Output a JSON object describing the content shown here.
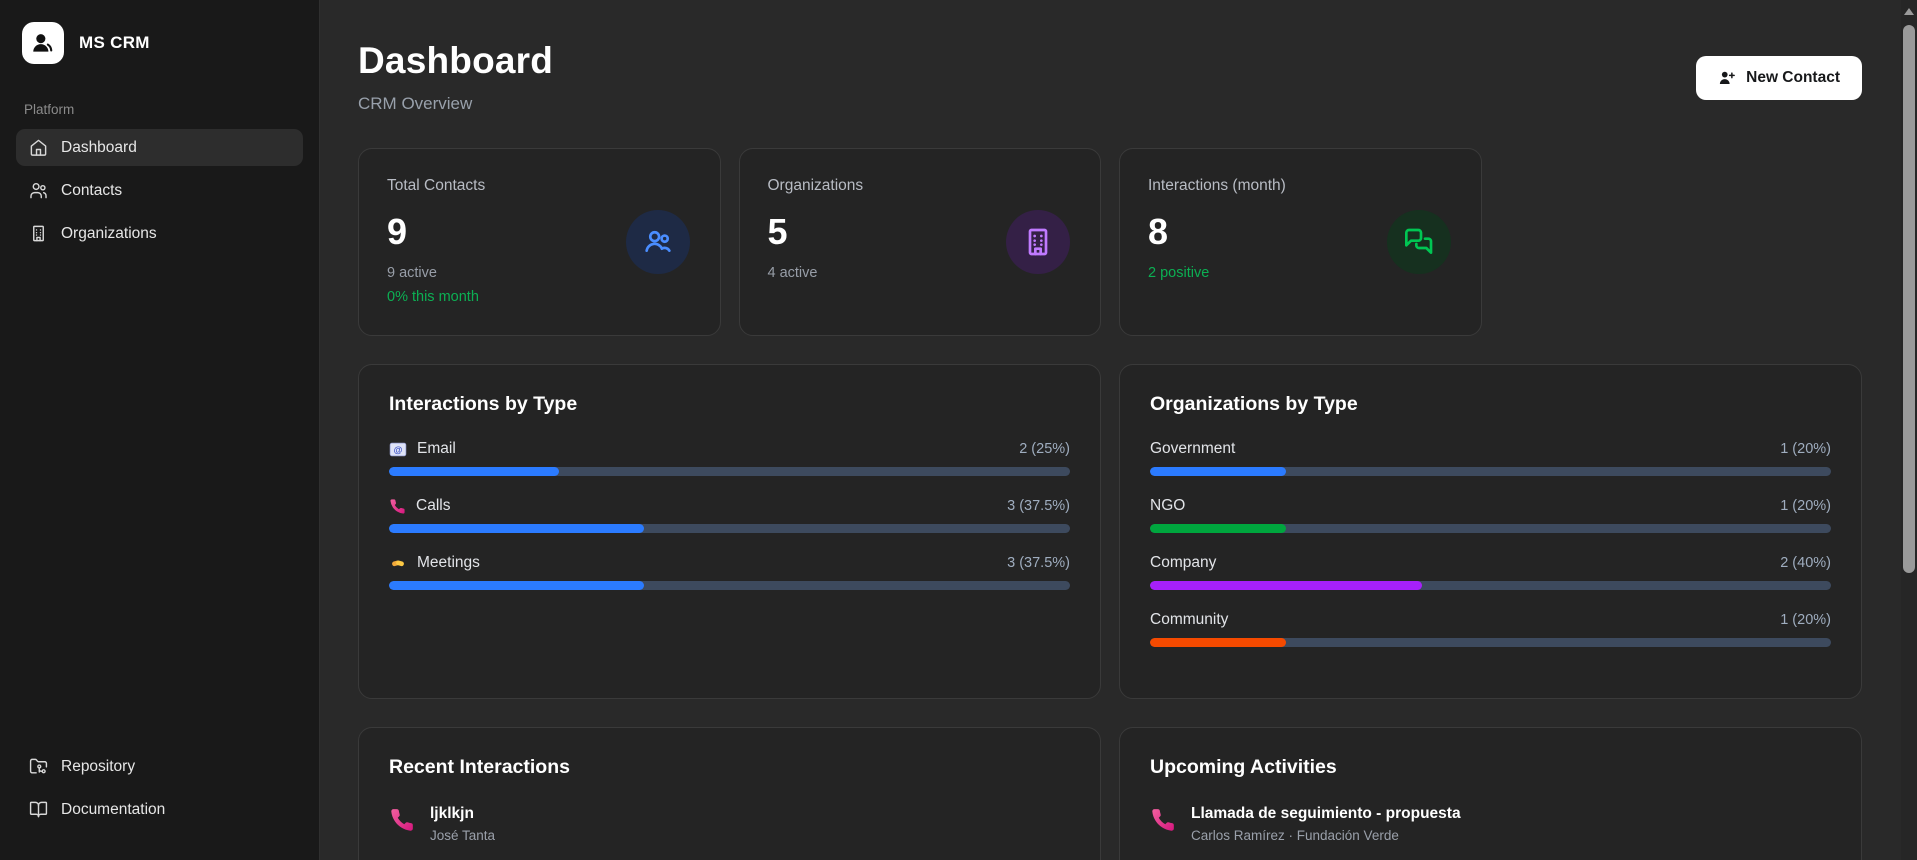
{
  "app": {
    "name": "MS CRM"
  },
  "sidebar": {
    "section_label": "Platform",
    "items": [
      {
        "label": "Dashboard",
        "icon": "home-icon",
        "active": true
      },
      {
        "label": "Contacts",
        "icon": "users-icon",
        "active": false
      },
      {
        "label": "Organizations",
        "icon": "building-icon",
        "active": false
      }
    ],
    "footer_items": [
      {
        "label": "Repository",
        "icon": "folder-git-icon"
      },
      {
        "label": "Documentation",
        "icon": "book-open-icon"
      }
    ]
  },
  "header": {
    "title": "Dashboard",
    "subtitle": "CRM Overview",
    "new_contact_label": "New Contact"
  },
  "colors": {
    "positive_green": "#0caf53",
    "bar_track": "#3d4a5e",
    "accent_blue": "#2b7bff"
  },
  "stats": [
    {
      "label": "Total Contacts",
      "value": "9",
      "sub": "9 active",
      "trend": "0% this month",
      "icon": "users-icon",
      "icon_color": "#4a8dff",
      "icon_bg": "#1e2a45"
    },
    {
      "label": "Organizations",
      "value": "5",
      "sub": "4 active",
      "icon": "building-icon",
      "icon_color": "#c07aff",
      "icon_bg": "#342046"
    },
    {
      "label": "Interactions (month)",
      "value": "8",
      "trend": "2 positive",
      "icon": "chat-bubbles-icon",
      "icon_color": "#00c653",
      "icon_bg": "#16301f"
    }
  ],
  "chart_data": [
    {
      "type": "bar",
      "title": "Interactions by Type",
      "legend_position": "none",
      "xlim": [
        0,
        100
      ],
      "rows": [
        {
          "label": "Email",
          "emoji": "email-icon",
          "value": 2,
          "percent": 25,
          "display": "2 (25%)",
          "color": "#2b7bff"
        },
        {
          "label": "Calls",
          "emoji": "phone-icon",
          "value": 3,
          "percent": 37.5,
          "display": "3 (37.5%)",
          "color": "#2b7bff"
        },
        {
          "label": "Meetings",
          "emoji": "handshake-icon",
          "value": 3,
          "percent": 37.5,
          "display": "3 (37.5%)",
          "color": "#2b7bff"
        }
      ]
    },
    {
      "type": "bar",
      "title": "Organizations by Type",
      "legend_position": "none",
      "xlim": [
        0,
        100
      ],
      "rows": [
        {
          "label": "Government",
          "value": 1,
          "percent": 20,
          "display": "1 (20%)",
          "color": "#2b7bff"
        },
        {
          "label": "NGO",
          "value": 1,
          "percent": 20,
          "display": "1 (20%)",
          "color": "#00a63e"
        },
        {
          "label": "Company",
          "value": 2,
          "percent": 40,
          "display": "2 (40%)",
          "color": "#a620fa"
        },
        {
          "label": "Community",
          "value": 1,
          "percent": 20,
          "display": "1 (20%)",
          "color": "#f54a00"
        }
      ]
    }
  ],
  "recent": {
    "title": "Recent Interactions",
    "items": [
      {
        "title": "ljklkjn",
        "subtitle": "José Tanta",
        "icon": "phone-icon"
      }
    ]
  },
  "upcoming": {
    "title": "Upcoming Activities",
    "items": [
      {
        "title": "Llamada de seguimiento - propuesta",
        "subtitle": "Carlos Ramírez · Fundación Verde",
        "icon": "phone-icon"
      }
    ]
  }
}
